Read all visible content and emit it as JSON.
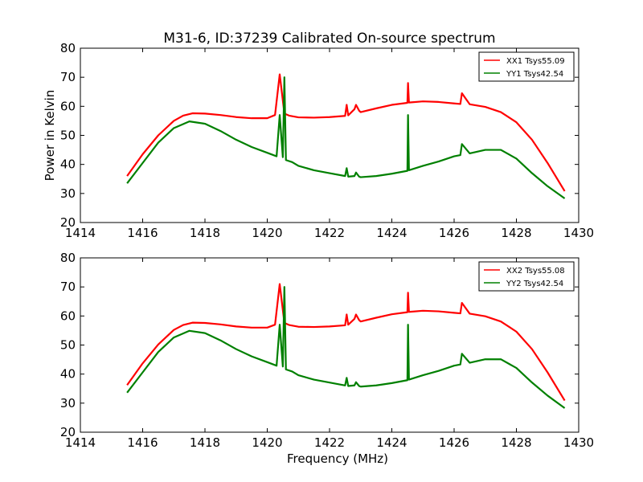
{
  "figure": {
    "title": "M31-6, ID:37239 Calibrated On-source spectrum"
  },
  "chart_data": [
    {
      "type": "line",
      "title": "M31-6, ID:37239 Calibrated On-source spectrum",
      "xlabel": "",
      "ylabel": "Power in Kelvin",
      "xlim": [
        1414,
        1430
      ],
      "ylim": [
        20,
        80
      ],
      "xticks": [
        1414,
        1416,
        1418,
        1420,
        1422,
        1424,
        1426,
        1428,
        1430
      ],
      "yticks": [
        20,
        30,
        40,
        50,
        60,
        70,
        80
      ],
      "grid": false,
      "legend_position": "top-right",
      "series": [
        {
          "name": "XX1 Tsys55.09",
          "color": "#ff0000",
          "x": [
            1415.5,
            1416.0,
            1416.5,
            1417.0,
            1417.3,
            1417.6,
            1418.0,
            1418.5,
            1419.0,
            1419.5,
            1420.0,
            1420.25,
            1420.4,
            1420.55,
            1420.7,
            1421.0,
            1421.5,
            1422.0,
            1422.5,
            1422.55,
            1422.6,
            1422.8,
            1422.85,
            1422.95,
            1423.0,
            1423.5,
            1424.0,
            1424.5,
            1424.52,
            1424.55,
            1425.0,
            1425.5,
            1426.0,
            1426.2,
            1426.25,
            1426.5,
            1427.0,
            1427.5,
            1428.0,
            1428.5,
            1429.0,
            1429.55
          ],
          "y": [
            36.0,
            43.5,
            50.0,
            55.0,
            56.8,
            57.6,
            57.5,
            57.0,
            56.3,
            55.9,
            55.9,
            57.0,
            71.0,
            57.5,
            56.8,
            56.2,
            56.1,
            56.3,
            56.7,
            60.5,
            56.9,
            59.0,
            60.5,
            58.5,
            58.0,
            59.3,
            60.5,
            61.2,
            68.0,
            61.3,
            61.7,
            61.5,
            61.0,
            60.8,
            64.5,
            60.7,
            59.8,
            58.0,
            54.5,
            48.5,
            40.5,
            30.8
          ]
        },
        {
          "name": "YY1 Tsys42.54",
          "color": "#008000",
          "x": [
            1415.5,
            1416.0,
            1416.5,
            1417.0,
            1417.5,
            1418.0,
            1418.5,
            1419.0,
            1419.5,
            1420.0,
            1420.3,
            1420.4,
            1420.5,
            1420.55,
            1420.6,
            1420.8,
            1421.0,
            1421.5,
            1422.0,
            1422.5,
            1422.55,
            1422.6,
            1422.8,
            1422.85,
            1422.95,
            1423.0,
            1423.5,
            1424.0,
            1424.5,
            1424.52,
            1424.55,
            1425.0,
            1425.5,
            1426.0,
            1426.2,
            1426.25,
            1426.5,
            1427.0,
            1427.5,
            1428.0,
            1428.5,
            1429.0,
            1429.55
          ],
          "y": [
            33.5,
            40.5,
            47.5,
            52.5,
            54.8,
            54.0,
            51.5,
            48.5,
            46.0,
            44.0,
            42.8,
            57.0,
            42.5,
            70.0,
            41.5,
            40.8,
            39.5,
            38.0,
            37.0,
            36.0,
            38.7,
            35.8,
            36.0,
            37.2,
            35.8,
            35.6,
            36.0,
            36.8,
            37.8,
            57.0,
            38.0,
            39.5,
            41.0,
            42.8,
            43.2,
            47.0,
            43.8,
            45.0,
            45.0,
            42.0,
            37.0,
            32.5,
            28.3
          ]
        }
      ]
    },
    {
      "type": "line",
      "title": "",
      "xlabel": "Frequency (MHz)",
      "ylabel": "",
      "xlim": [
        1414,
        1430
      ],
      "ylim": [
        20,
        80
      ],
      "xticks": [
        1414,
        1416,
        1418,
        1420,
        1422,
        1424,
        1426,
        1428,
        1430
      ],
      "yticks": [
        20,
        30,
        40,
        50,
        60,
        70,
        80
      ],
      "grid": false,
      "legend_position": "top-right",
      "series": [
        {
          "name": "XX2 Tsys55.08",
          "color": "#ff0000",
          "x": [
            1415.5,
            1416.0,
            1416.5,
            1417.0,
            1417.3,
            1417.6,
            1418.0,
            1418.5,
            1419.0,
            1419.5,
            1420.0,
            1420.25,
            1420.4,
            1420.55,
            1420.7,
            1421.0,
            1421.5,
            1422.0,
            1422.5,
            1422.55,
            1422.6,
            1422.8,
            1422.85,
            1422.95,
            1423.0,
            1423.5,
            1424.0,
            1424.5,
            1424.52,
            1424.55,
            1425.0,
            1425.5,
            1426.0,
            1426.2,
            1426.25,
            1426.5,
            1427.0,
            1427.5,
            1428.0,
            1428.5,
            1429.0,
            1429.55
          ],
          "y": [
            36.2,
            43.7,
            50.2,
            55.2,
            56.9,
            57.7,
            57.6,
            57.1,
            56.4,
            56.0,
            56.0,
            57.0,
            71.0,
            57.6,
            56.9,
            56.3,
            56.2,
            56.4,
            56.8,
            60.5,
            57.0,
            59.0,
            60.5,
            58.6,
            58.1,
            59.4,
            60.6,
            61.3,
            68.0,
            61.4,
            61.8,
            61.6,
            61.1,
            60.9,
            64.5,
            60.8,
            59.9,
            58.1,
            54.6,
            48.6,
            40.6,
            30.9
          ]
        },
        {
          "name": "YY2 Tsys42.54",
          "color": "#008000",
          "x": [
            1415.5,
            1416.0,
            1416.5,
            1417.0,
            1417.5,
            1418.0,
            1418.5,
            1419.0,
            1419.5,
            1420.0,
            1420.3,
            1420.4,
            1420.5,
            1420.55,
            1420.6,
            1420.8,
            1421.0,
            1421.5,
            1422.0,
            1422.5,
            1422.55,
            1422.6,
            1422.8,
            1422.85,
            1422.95,
            1423.0,
            1423.5,
            1424.0,
            1424.5,
            1424.52,
            1424.55,
            1425.0,
            1425.5,
            1426.0,
            1426.2,
            1426.25,
            1426.5,
            1427.0,
            1427.5,
            1428.0,
            1428.5,
            1429.0,
            1429.55
          ],
          "y": [
            33.6,
            40.6,
            47.6,
            52.6,
            54.9,
            54.1,
            51.6,
            48.6,
            46.1,
            44.1,
            42.9,
            57.0,
            42.6,
            70.0,
            41.6,
            40.9,
            39.6,
            38.1,
            37.1,
            36.1,
            38.7,
            35.9,
            36.1,
            37.2,
            35.9,
            35.7,
            36.1,
            36.9,
            37.9,
            57.0,
            38.1,
            39.6,
            41.1,
            42.9,
            43.3,
            47.0,
            43.9,
            45.1,
            45.1,
            42.1,
            37.1,
            32.6,
            28.3
          ]
        }
      ]
    }
  ]
}
